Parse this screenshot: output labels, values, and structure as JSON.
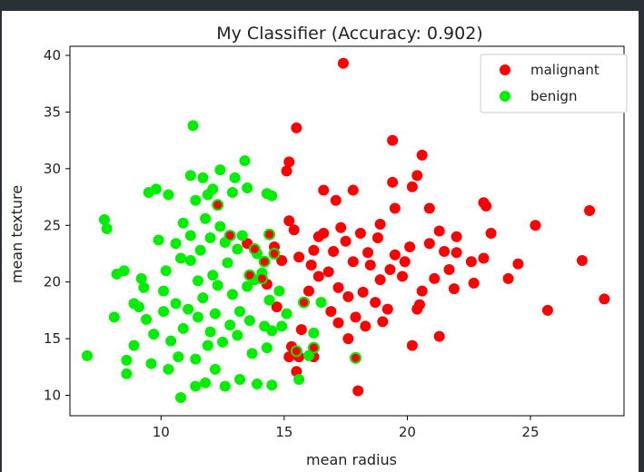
{
  "chart_data": {
    "type": "scatter",
    "title": "My Classifier (Accuracy: 0.902)",
    "xlabel": "mean radius",
    "ylabel": "mean texture",
    "xlim": [
      6.3,
      28.8
    ],
    "ylim": [
      8.2,
      40.8
    ],
    "xticks": [
      10,
      15,
      20,
      25
    ],
    "yticks": [
      10,
      15,
      20,
      25,
      30,
      35,
      40
    ],
    "grid": false,
    "legend_position": "top-right",
    "series": [
      {
        "name": "malignant",
        "color": "#ff0000",
        "points": [
          [
            17.4,
            39.3
          ],
          [
            18,
            10.4
          ],
          [
            15.5,
            33.6
          ],
          [
            15.2,
            30.6
          ],
          [
            15.1,
            29.8
          ],
          [
            16.6,
            28.1
          ],
          [
            17.8,
            28.1
          ],
          [
            17.1,
            27.2
          ],
          [
            19.4,
            32.5
          ],
          [
            20.6,
            31.2
          ],
          [
            20.4,
            29.4
          ],
          [
            19.4,
            28.8
          ],
          [
            20.2,
            28.4
          ],
          [
            19.5,
            26.5
          ],
          [
            20.9,
            26.5
          ],
          [
            21.3,
            24.5
          ],
          [
            23.1,
            27
          ],
          [
            23.2,
            26.7
          ],
          [
            25.2,
            25
          ],
          [
            27.4,
            26.3
          ],
          [
            23.4,
            24.3
          ],
          [
            22,
            24
          ],
          [
            18.9,
            25.1
          ],
          [
            18.1,
            24.3
          ],
          [
            17.3,
            24.8
          ],
          [
            16.4,
            24
          ],
          [
            15.4,
            24.6
          ],
          [
            15.2,
            25.4
          ],
          [
            16.2,
            22.8
          ],
          [
            17,
            22.7
          ],
          [
            18.4,
            22.6
          ],
          [
            19.5,
            22.4
          ],
          [
            20.1,
            23.1
          ],
          [
            21.5,
            22.7
          ],
          [
            22.6,
            21.8
          ],
          [
            24.5,
            21.6
          ],
          [
            23.1,
            22.1
          ],
          [
            27.1,
            21.9
          ],
          [
            28,
            18.5
          ],
          [
            24.1,
            20.3
          ],
          [
            25.7,
            17.5
          ],
          [
            22.7,
            19.9
          ],
          [
            21.9,
            19.4
          ],
          [
            20.5,
            18
          ],
          [
            19.2,
            17.6
          ],
          [
            18.3,
            16.1
          ],
          [
            17.2,
            16.4
          ],
          [
            17.6,
            15
          ],
          [
            15.7,
            15.8
          ],
          [
            15.3,
            14.3
          ],
          [
            15.2,
            13.4
          ],
          [
            15.6,
            13.4
          ],
          [
            15.5,
            12.1
          ],
          [
            16.2,
            13.4
          ],
          [
            20.2,
            14.4
          ],
          [
            21.3,
            15.2
          ],
          [
            16.4,
            20.5
          ],
          [
            16.8,
            20.9
          ],
          [
            17.2,
            19.5
          ],
          [
            17.6,
            18.7
          ],
          [
            18.2,
            19.1
          ],
          [
            18.9,
            20.2
          ],
          [
            19.3,
            21.1
          ],
          [
            19.8,
            20.5
          ],
          [
            20.6,
            19.2
          ],
          [
            21.1,
            20.3
          ],
          [
            20.4,
            17.6
          ],
          [
            22,
            22.6
          ],
          [
            16.9,
            17.4
          ],
          [
            18.7,
            18.2
          ],
          [
            17.8,
            21.8
          ],
          [
            16,
            19.2
          ],
          [
            17.5,
            23.6
          ],
          [
            18.8,
            23.9
          ],
          [
            16.6,
            24.3
          ],
          [
            14.6,
            23.1
          ],
          [
            14.9,
            21.9
          ],
          [
            15.6,
            22.2
          ],
          [
            16.1,
            21.5
          ],
          [
            13.5,
            23.4
          ],
          [
            14.3,
            19.8
          ],
          [
            14.7,
            17.8
          ],
          [
            19.9,
            21.8
          ],
          [
            21.7,
            21.1
          ],
          [
            20.9,
            23.4
          ],
          [
            18.5,
            21.5
          ],
          [
            17.9,
            16.9
          ],
          [
            19,
            16.5
          ]
        ]
      },
      {
        "name": "benign",
        "color": "#00ee00",
        "points": [
          [
            7,
            13.5
          ],
          [
            7.7,
            25.5
          ],
          [
            7.8,
            24.7
          ],
          [
            8.2,
            20.7
          ],
          [
            8.5,
            21
          ],
          [
            8.1,
            16.9
          ],
          [
            8.6,
            13.1
          ],
          [
            8.6,
            11.9
          ],
          [
            8.9,
            14.4
          ],
          [
            9.2,
            20.3
          ],
          [
            9.5,
            27.9
          ],
          [
            9.8,
            28.2
          ],
          [
            10.3,
            27.7
          ],
          [
            10.9,
            25.2
          ],
          [
            11.3,
            33.8
          ],
          [
            11.2,
            29.4
          ],
          [
            11.7,
            29.2
          ],
          [
            11.4,
            27.2
          ],
          [
            11.9,
            27.7
          ],
          [
            12.1,
            28.2
          ],
          [
            12.4,
            29.9
          ],
          [
            13,
            29.2
          ],
          [
            13.4,
            30.7
          ],
          [
            12.9,
            27.9
          ],
          [
            13.5,
            28.3
          ],
          [
            14.3,
            27.8
          ],
          [
            14.5,
            27.6
          ],
          [
            10.8,
            9.8
          ],
          [
            11.4,
            10.8
          ],
          [
            11.8,
            11.1
          ],
          [
            12.2,
            12.3
          ],
          [
            12.6,
            10.8
          ],
          [
            13.2,
            11.4
          ],
          [
            10.3,
            12.3
          ],
          [
            9.6,
            12.8
          ],
          [
            13.9,
            11
          ],
          [
            14.5,
            10.9
          ],
          [
            15.6,
            11.4
          ],
          [
            16,
            13.5
          ],
          [
            16.2,
            15.5
          ],
          [
            16.5,
            18.2
          ],
          [
            14.5,
            15.7
          ],
          [
            9.1,
            17.8
          ],
          [
            10.1,
            19.2
          ],
          [
            10.6,
            18.1
          ],
          [
            11.2,
            21.9
          ],
          [
            11.6,
            22.8
          ],
          [
            12,
            23.9
          ],
          [
            12.6,
            23.5
          ],
          [
            13.3,
            24.1
          ],
          [
            13.9,
            22.5
          ],
          [
            14.1,
            20.8
          ],
          [
            9.7,
            15.4
          ],
          [
            10.4,
            14.8
          ],
          [
            10.9,
            15.9
          ],
          [
            11.5,
            16.9
          ],
          [
            12,
            15.6
          ],
          [
            12.5,
            14.7
          ],
          [
            13.1,
            15.3
          ],
          [
            13.6,
            16.6
          ],
          [
            14.2,
            16.1
          ],
          [
            11.1,
            17.6
          ],
          [
            11.7,
            18.6
          ],
          [
            12.3,
            19.7
          ],
          [
            12.9,
            18.9
          ],
          [
            13.5,
            19.6
          ],
          [
            14.4,
            18.4
          ],
          [
            10.2,
            21
          ],
          [
            10.8,
            22.1
          ],
          [
            12.1,
            20.6
          ],
          [
            12.7,
            21.7
          ],
          [
            13.2,
            17.4
          ],
          [
            11.4,
            13.2
          ],
          [
            12.2,
            17.2
          ],
          [
            9.4,
            16.7
          ],
          [
            10.1,
            17.4
          ],
          [
            13.7,
            13.7
          ],
          [
            14.8,
            19.2
          ],
          [
            13.1,
            22.9
          ],
          [
            12.4,
            24.9
          ],
          [
            11.8,
            25.6
          ],
          [
            11.2,
            24.1
          ],
          [
            10.6,
            23.4
          ],
          [
            9.9,
            23.7
          ],
          [
            11.5,
            20.1
          ],
          [
            12.8,
            16.2
          ],
          [
            13.8,
            20.2
          ],
          [
            14.3,
            14.2
          ],
          [
            10.7,
            13.4
          ],
          [
            11.9,
            14.4
          ],
          [
            9.3,
            19.5
          ],
          [
            8.9,
            18.1
          ],
          [
            15.1,
            17.2
          ],
          [
            14.9,
            16.1
          ]
        ]
      }
    ],
    "overlap_points": [
      [
        13.8,
        22.9
      ],
      [
        14.2,
        21.8
      ],
      [
        14.6,
        22.5
      ],
      [
        13.6,
        20.6
      ],
      [
        14.1,
        20.3
      ],
      [
        15.8,
        18.2
      ],
      [
        16.2,
        14.2
      ],
      [
        15.5,
        13.9
      ],
      [
        17.9,
        13.3
      ],
      [
        12.3,
        26.8
      ],
      [
        12.8,
        24.1
      ],
      [
        14.4,
        24.2
      ]
    ]
  }
}
